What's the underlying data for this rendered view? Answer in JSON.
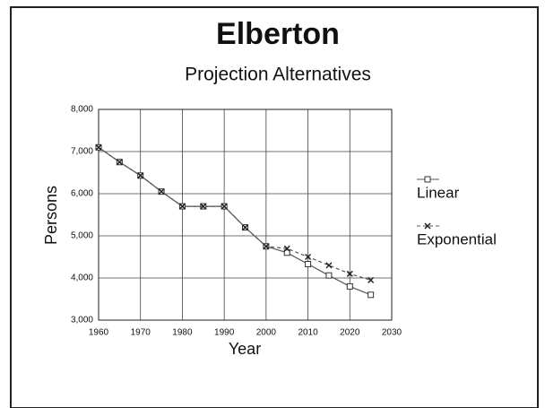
{
  "chart_data": {
    "type": "line",
    "title": "Elberton",
    "subtitle": "Projection Alternatives",
    "x_label": "Year",
    "y_label": "Persons",
    "x": [
      1960,
      1965,
      1970,
      1975,
      1980,
      1985,
      1990,
      1995,
      2000,
      2005,
      2010,
      2015,
      2020,
      2025
    ],
    "series": [
      {
        "name": "Linear",
        "color": "#555555",
        "values": [
          7100,
          6750,
          6430,
          6050,
          5700,
          5700,
          5700,
          5200,
          4750,
          4600,
          4330,
          4060,
          3800,
          3600
        ]
      },
      {
        "name": "Exponential",
        "color": "#555555",
        "values": [
          7100,
          6750,
          6430,
          6050,
          5700,
          5700,
          5700,
          5200,
          4750,
          4700,
          4500,
          4300,
          4100,
          3950
        ]
      }
    ],
    "xlim": [
      1960,
      2030
    ],
    "xticks": [
      1960,
      1970,
      1980,
      1990,
      2000,
      2010,
      2020,
      2030
    ],
    "ylim": [
      3000,
      8000
    ],
    "yticks": [
      {
        "value": 3000,
        "label": "3,000"
      },
      {
        "value": 4000,
        "label": "4,000"
      },
      {
        "value": 5000,
        "label": "5,000"
      },
      {
        "value": 6000,
        "label": "6,000"
      },
      {
        "value": 7000,
        "label": "7,000"
      },
      {
        "value": 8000,
        "label": "8,000"
      }
    ],
    "grid": true,
    "legend": "right"
  }
}
